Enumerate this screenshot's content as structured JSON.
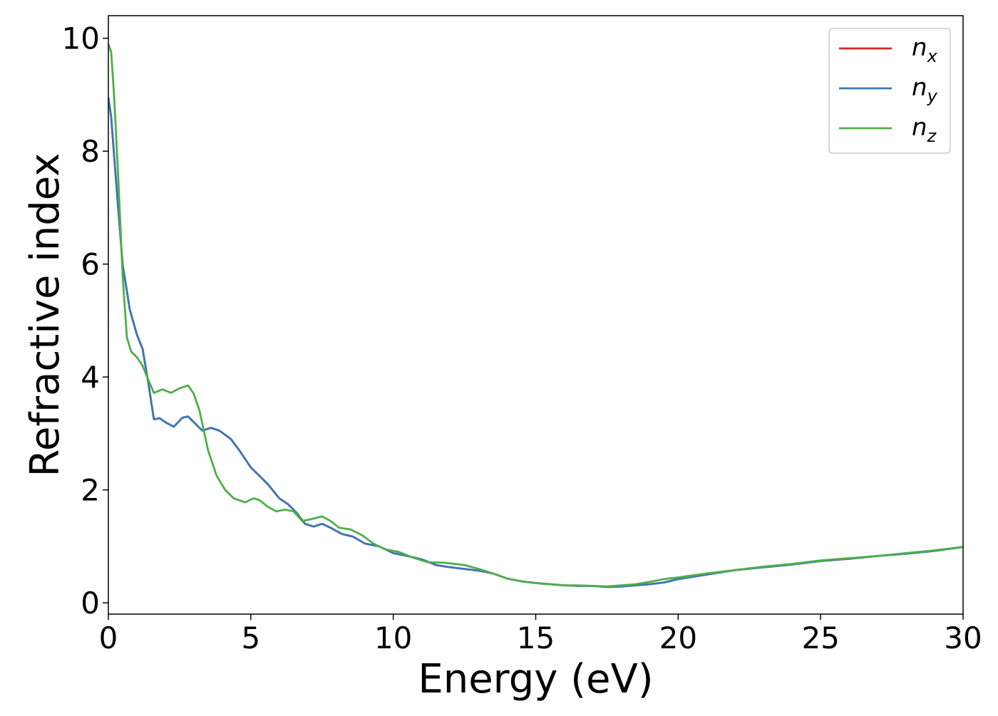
{
  "chart_data": {
    "type": "line",
    "xlabel": "Energy (eV)",
    "ylabel": "Refractive index",
    "xlim": [
      0,
      30
    ],
    "ylim": [
      -0.2,
      10.4
    ],
    "xticks": [
      0,
      5,
      10,
      15,
      20,
      25,
      30
    ],
    "xtick_labels": [
      "0",
      "5",
      "10",
      "15",
      "20",
      "25",
      "30"
    ],
    "yticks": [
      0,
      2,
      4,
      6,
      8,
      10
    ],
    "ytick_labels": [
      "0",
      "2",
      "4",
      "6",
      "8",
      "10"
    ],
    "grid": false,
    "legend_position": "top-right",
    "series": [
      {
        "name": "n_x",
        "legend_base": "n",
        "legend_sub": "x",
        "color": "#d62728",
        "x": [
          0,
          0.1,
          0.25,
          0.5,
          0.75,
          1.0,
          1.2,
          1.4,
          1.6,
          1.8,
          2.0,
          2.3,
          2.6,
          2.8,
          3.0,
          3.3,
          3.6,
          3.9,
          4.3,
          4.6,
          5.0,
          5.3,
          5.6,
          6.0,
          6.3,
          6.6,
          6.9,
          7.2,
          7.5,
          7.8,
          8.2,
          8.6,
          9.0,
          9.5,
          10.0,
          10.5,
          11.0,
          11.5,
          12.0,
          12.5,
          13.0,
          13.5,
          14.0,
          14.5,
          15.0,
          15.5,
          16.0,
          16.5,
          17.0,
          17.5,
          18.0,
          18.5,
          19.0,
          19.5,
          20.0,
          21.0,
          22.0,
          23.0,
          24.0,
          25.0,
          26.0,
          27.0,
          28.0,
          29.0,
          30.0
        ],
        "y": [
          8.95,
          8.6,
          7.6,
          6.0,
          5.2,
          4.75,
          4.5,
          3.9,
          3.25,
          3.27,
          3.2,
          3.12,
          3.28,
          3.3,
          3.2,
          3.05,
          3.1,
          3.05,
          2.9,
          2.7,
          2.4,
          2.25,
          2.1,
          1.85,
          1.75,
          1.6,
          1.4,
          1.35,
          1.4,
          1.33,
          1.22,
          1.17,
          1.05,
          1.0,
          0.88,
          0.83,
          0.77,
          0.67,
          0.63,
          0.6,
          0.57,
          0.52,
          0.43,
          0.38,
          0.35,
          0.33,
          0.31,
          0.3,
          0.3,
          0.28,
          0.29,
          0.31,
          0.33,
          0.36,
          0.42,
          0.5,
          0.58,
          0.63,
          0.68,
          0.74,
          0.78,
          0.83,
          0.87,
          0.92,
          0.99
        ]
      },
      {
        "name": "n_y",
        "legend_base": "n",
        "legend_sub": "y",
        "color": "#3a78b4",
        "x": [
          0,
          0.1,
          0.25,
          0.5,
          0.75,
          1.0,
          1.2,
          1.4,
          1.6,
          1.8,
          2.0,
          2.3,
          2.6,
          2.8,
          3.0,
          3.3,
          3.6,
          3.9,
          4.3,
          4.6,
          5.0,
          5.3,
          5.6,
          6.0,
          6.3,
          6.6,
          6.9,
          7.2,
          7.5,
          7.8,
          8.2,
          8.6,
          9.0,
          9.5,
          10.0,
          10.5,
          11.0,
          11.5,
          12.0,
          12.5,
          13.0,
          13.5,
          14.0,
          14.5,
          15.0,
          15.5,
          16.0,
          16.5,
          17.0,
          17.5,
          18.0,
          18.5,
          19.0,
          19.5,
          20.0,
          21.0,
          22.0,
          23.0,
          24.0,
          25.0,
          26.0,
          27.0,
          28.0,
          29.0,
          30.0
        ],
        "y": [
          8.95,
          8.6,
          7.6,
          6.0,
          5.2,
          4.75,
          4.5,
          3.9,
          3.25,
          3.27,
          3.2,
          3.12,
          3.28,
          3.3,
          3.2,
          3.05,
          3.1,
          3.05,
          2.9,
          2.7,
          2.4,
          2.25,
          2.1,
          1.85,
          1.75,
          1.6,
          1.4,
          1.35,
          1.4,
          1.33,
          1.22,
          1.17,
          1.05,
          1.0,
          0.88,
          0.83,
          0.77,
          0.67,
          0.63,
          0.6,
          0.57,
          0.52,
          0.43,
          0.38,
          0.35,
          0.33,
          0.31,
          0.3,
          0.3,
          0.28,
          0.29,
          0.31,
          0.33,
          0.36,
          0.42,
          0.5,
          0.58,
          0.63,
          0.68,
          0.74,
          0.78,
          0.83,
          0.87,
          0.92,
          0.99
        ]
      },
      {
        "name": "n_z",
        "legend_base": "n",
        "legend_sub": "z",
        "color": "#4daf4a",
        "x": [
          0,
          0.1,
          0.2,
          0.35,
          0.5,
          0.65,
          0.8,
          1.0,
          1.2,
          1.4,
          1.6,
          1.9,
          2.2,
          2.5,
          2.8,
          3.0,
          3.2,
          3.5,
          3.8,
          4.1,
          4.4,
          4.8,
          5.1,
          5.3,
          5.6,
          5.9,
          6.2,
          6.5,
          6.8,
          7.1,
          7.5,
          7.8,
          8.1,
          8.5,
          8.9,
          9.3,
          9.7,
          10.2,
          10.7,
          11.2,
          11.8,
          12.5,
          13.0,
          13.5,
          14.0,
          14.5,
          15.0,
          15.5,
          16.0,
          16.5,
          17.0,
          17.5,
          18.0,
          18.5,
          19.0,
          19.5,
          20.0,
          21.0,
          22.0,
          23.0,
          24.0,
          25.0,
          26.0,
          27.0,
          28.0,
          29.0,
          30.0
        ],
        "y": [
          9.9,
          9.75,
          9.0,
          7.5,
          5.8,
          4.7,
          4.45,
          4.35,
          4.2,
          3.95,
          3.72,
          3.78,
          3.72,
          3.8,
          3.85,
          3.7,
          3.4,
          2.7,
          2.25,
          2.0,
          1.85,
          1.78,
          1.85,
          1.82,
          1.7,
          1.62,
          1.65,
          1.62,
          1.45,
          1.48,
          1.53,
          1.45,
          1.33,
          1.3,
          1.2,
          1.05,
          0.95,
          0.9,
          0.8,
          0.72,
          0.71,
          0.67,
          0.6,
          0.52,
          0.43,
          0.38,
          0.35,
          0.33,
          0.31,
          0.31,
          0.3,
          0.29,
          0.31,
          0.33,
          0.37,
          0.42,
          0.45,
          0.52,
          0.58,
          0.64,
          0.69,
          0.75,
          0.79,
          0.83,
          0.88,
          0.93,
          0.99
        ]
      }
    ]
  }
}
